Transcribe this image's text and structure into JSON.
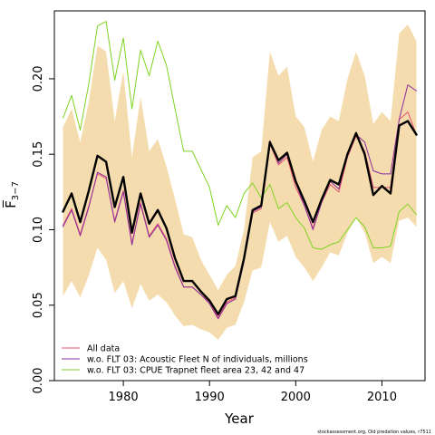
{
  "chart_data": {
    "type": "line",
    "xlabel": "Year",
    "ylabel": "F̅",
    "ylabel_sub": "3−7",
    "xlim": [
      1972,
      2015
    ],
    "ylim": [
      0,
      0.245
    ],
    "x_ticks": [
      1980,
      1990,
      2000,
      2010
    ],
    "y_ticks": [
      0.0,
      0.05,
      0.1,
      0.15,
      0.2
    ],
    "y_tick_labels": [
      "0.00",
      "0.05",
      "0.10",
      "0.15",
      "0.20"
    ],
    "x_tick_labels": [
      "1980",
      "1990",
      "2000",
      "2010"
    ],
    "years": [
      1973,
      1974,
      1975,
      1976,
      1977,
      1978,
      1979,
      1980,
      1981,
      1982,
      1983,
      1984,
      1985,
      1986,
      1987,
      1988,
      1989,
      1990,
      1991,
      1992,
      1993,
      1994,
      1995,
      1996,
      1997,
      1998,
      1999,
      2000,
      2001,
      2002,
      2003,
      2004,
      2005,
      2006,
      2007,
      2008,
      2009,
      2010,
      2011,
      2012,
      2013,
      2014
    ],
    "band": {
      "upper": [
        0.168,
        0.18,
        0.158,
        0.185,
        0.222,
        0.218,
        0.172,
        0.205,
        0.148,
        0.188,
        0.152,
        0.16,
        0.142,
        0.12,
        0.097,
        0.095,
        0.08,
        0.07,
        0.06,
        0.07,
        0.076,
        0.1,
        0.148,
        0.152,
        0.218,
        0.202,
        0.208,
        0.175,
        0.168,
        0.145,
        0.166,
        0.175,
        0.172,
        0.2,
        0.218,
        0.202,
        0.17,
        0.178,
        0.172,
        0.23,
        0.236,
        0.225
      ],
      "lower": [
        0.056,
        0.066,
        0.055,
        0.07,
        0.088,
        0.08,
        0.058,
        0.066,
        0.048,
        0.064,
        0.053,
        0.057,
        0.052,
        0.043,
        0.036,
        0.037,
        0.034,
        0.032,
        0.027,
        0.035,
        0.037,
        0.052,
        0.073,
        0.075,
        0.105,
        0.092,
        0.096,
        0.082,
        0.075,
        0.066,
        0.075,
        0.085,
        0.083,
        0.098,
        0.108,
        0.098,
        0.078,
        0.082,
        0.078,
        0.106,
        0.108,
        0.102
      ]
    },
    "series": [
      {
        "name": "All data",
        "color": "#e8526e",
        "width": 1,
        "values": [
          0.103,
          0.114,
          0.097,
          0.116,
          0.137,
          0.134,
          0.106,
          0.126,
          0.091,
          0.118,
          0.096,
          0.104,
          0.094,
          0.076,
          0.062,
          0.062,
          0.057,
          0.052,
          0.042,
          0.052,
          0.055,
          0.08,
          0.111,
          0.114,
          0.157,
          0.143,
          0.148,
          0.128,
          0.116,
          0.101,
          0.118,
          0.13,
          0.125,
          0.148,
          0.162,
          0.152,
          0.128,
          0.128,
          0.128,
          0.173,
          0.178,
          0.163
        ]
      },
      {
        "name": "w.o. FLT 03: Acoustic Fleet   N of individuals, millions",
        "color": "#8b2b9e",
        "width": 1,
        "values": [
          0.102,
          0.113,
          0.096,
          0.115,
          0.138,
          0.135,
          0.105,
          0.125,
          0.09,
          0.117,
          0.095,
          0.103,
          0.093,
          0.075,
          0.062,
          0.062,
          0.057,
          0.051,
          0.041,
          0.051,
          0.054,
          0.079,
          0.112,
          0.115,
          0.159,
          0.144,
          0.15,
          0.131,
          0.116,
          0.1,
          0.118,
          0.132,
          0.127,
          0.15,
          0.163,
          0.158,
          0.139,
          0.137,
          0.137,
          0.173,
          0.196,
          0.192
        ]
      },
      {
        "name": "w.o. FLT 03: CPUE Trapnet fleet area 23, 42 and 47",
        "color": "#7ed321",
        "width": 1,
        "values": [
          0.174,
          0.189,
          0.166,
          0.197,
          0.235,
          0.238,
          0.199,
          0.227,
          0.18,
          0.219,
          0.202,
          0.225,
          0.209,
          0.18,
          0.152,
          0.152,
          0.14,
          0.128,
          0.103,
          0.116,
          0.108,
          0.124,
          0.131,
          0.121,
          0.13,
          0.114,
          0.118,
          0.108,
          0.101,
          0.088,
          0.087,
          0.09,
          0.092,
          0.1,
          0.108,
          0.102,
          0.088,
          0.088,
          0.089,
          0.112,
          0.117,
          0.11
        ]
      },
      {
        "name": "",
        "color": "#000000",
        "width": 2.4,
        "values": [
          0.112,
          0.124,
          0.105,
          0.126,
          0.149,
          0.145,
          0.115,
          0.135,
          0.098,
          0.124,
          0.104,
          0.113,
          0.101,
          0.081,
          0.066,
          0.066,
          0.059,
          0.053,
          0.044,
          0.054,
          0.056,
          0.081,
          0.113,
          0.116,
          0.158,
          0.146,
          0.151,
          0.132,
          0.119,
          0.105,
          0.12,
          0.133,
          0.13,
          0.15,
          0.164,
          0.15,
          0.123,
          0.129,
          0.124,
          0.169,
          0.172,
          0.163
        ]
      }
    ],
    "legend": {
      "placement": "bottom-left",
      "entries": [
        {
          "label": "All data",
          "color": "#e8526e"
        },
        {
          "label": "w.o. FLT 03: Acoustic Fleet   N of individuals, millions",
          "color": "#8b2b9e"
        },
        {
          "label": "w.o. FLT 03: CPUE Trapnet fleet area 23, 42 and 47",
          "color": "#7ed321"
        }
      ]
    },
    "band_color": "#f5dcae",
    "footnote": "stockassessment.org,  Old  predation  values,  r7511",
    "grid": false
  }
}
